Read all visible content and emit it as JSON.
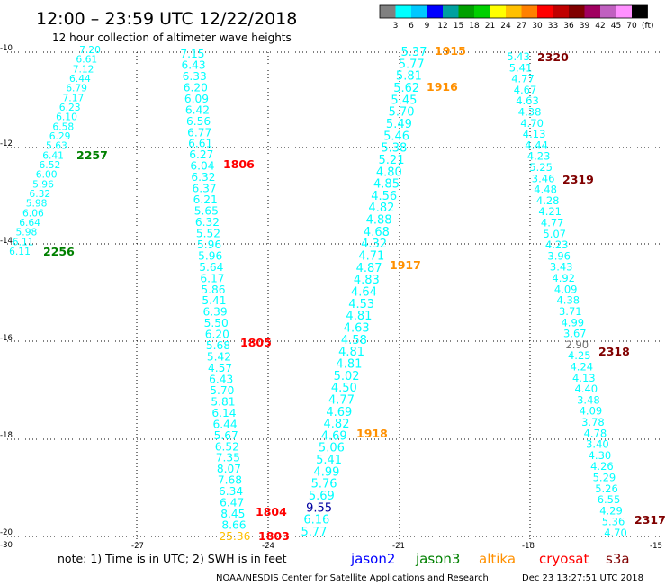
{
  "header": {
    "title": "12:00 – 23:59 UTC 12/22/2018",
    "subtitle": "12 hour collection of altimeter wave heights",
    "unit": "(ft)"
  },
  "legend_scale": {
    "colors": [
      "#808080",
      "#00ffff",
      "#00c8ff",
      "#0000ff",
      "#00a0a0",
      "#00a000",
      "#00d000",
      "#ffff00",
      "#ffc000",
      "#ff8000",
      "#ff0000",
      "#c00000",
      "#800000",
      "#a00060",
      "#c060c0",
      "#ff90ff",
      "#000000"
    ],
    "ticks": [
      "3",
      "6",
      "9",
      "12",
      "15",
      "18",
      "21",
      "24",
      "27",
      "30",
      "33",
      "36",
      "39",
      "42",
      "45",
      "70"
    ]
  },
  "map": {
    "lat_ticks": [
      "-10",
      "-12",
      "-14",
      "-16",
      "-18",
      "-20",
      "-30"
    ],
    "lon_ticks": [
      "-27",
      "-24",
      "-21",
      "-18",
      "-15"
    ],
    "tracks": [
      {
        "values": [
          {
            "t": "7.20",
            "c": "#00ffff"
          },
          {
            "t": "6.61",
            "c": "#00ffff"
          },
          {
            "t": "7.12",
            "c": "#00ffff"
          },
          {
            "t": "6.44",
            "c": "#00ffff"
          },
          {
            "t": "6.79",
            "c": "#00ffff"
          },
          {
            "t": "7.17",
            "c": "#00ffff"
          },
          {
            "t": "6.23",
            "c": "#00ffff"
          },
          {
            "t": "6.10",
            "c": "#00ffff"
          },
          {
            "t": "6.58",
            "c": "#00ffff"
          },
          {
            "t": "6.29",
            "c": "#00ffff"
          },
          {
            "t": "5.63",
            "c": "#00ffff"
          },
          {
            "t": "6.41",
            "c": "#00ffff"
          },
          {
            "t": "6.52",
            "c": "#00ffff"
          },
          {
            "t": "6.00",
            "c": "#00ffff"
          },
          {
            "t": "5.96",
            "c": "#00ffff"
          },
          {
            "t": "6.32",
            "c": "#00ffff"
          },
          {
            "t": "5.98",
            "c": "#00ffff"
          },
          {
            "t": "6.06",
            "c": "#00ffff"
          },
          {
            "t": "6.64",
            "c": "#00ffff"
          },
          {
            "t": "5.98",
            "c": "#00ffff"
          },
          {
            "t": "6.11",
            "c": "#00ffff"
          },
          {
            "t": "6.11",
            "c": "#00ffff"
          }
        ],
        "times": [
          {
            "t": "2257",
            "c": "#008000"
          },
          {
            "t": "2256",
            "c": "#008000"
          }
        ]
      },
      {
        "values": [
          {
            "t": "7.15",
            "c": "#00ffff"
          },
          {
            "t": "6.43",
            "c": "#00ffff"
          },
          {
            "t": "6.33",
            "c": "#00ffff"
          },
          {
            "t": "6.20",
            "c": "#00ffff"
          },
          {
            "t": "6.09",
            "c": "#00ffff"
          },
          {
            "t": "6.42",
            "c": "#00ffff"
          },
          {
            "t": "6.56",
            "c": "#00ffff"
          },
          {
            "t": "6.77",
            "c": "#00ffff"
          },
          {
            "t": "6.61",
            "c": "#00ffff"
          },
          {
            "t": "6.27",
            "c": "#00ffff"
          },
          {
            "t": "6.04",
            "c": "#00ffff"
          },
          {
            "t": "6.32",
            "c": "#00ffff"
          },
          {
            "t": "6.37",
            "c": "#00ffff"
          },
          {
            "t": "6.21",
            "c": "#00ffff"
          },
          {
            "t": "5.65",
            "c": "#00ffff"
          },
          {
            "t": "6.32",
            "c": "#00ffff"
          },
          {
            "t": "5.52",
            "c": "#00ffff"
          },
          {
            "t": "5.96",
            "c": "#00ffff"
          },
          {
            "t": "5.96",
            "c": "#00ffff"
          },
          {
            "t": "5.64",
            "c": "#00ffff"
          },
          {
            "t": "6.17",
            "c": "#00ffff"
          },
          {
            "t": "5.86",
            "c": "#00ffff"
          },
          {
            "t": "5.41",
            "c": "#00ffff"
          },
          {
            "t": "6.39",
            "c": "#00ffff"
          },
          {
            "t": "5.50",
            "c": "#00ffff"
          },
          {
            "t": "6.20",
            "c": "#00ffff"
          },
          {
            "t": "5.68",
            "c": "#00ffff"
          },
          {
            "t": "5.42",
            "c": "#00ffff"
          },
          {
            "t": "4.57",
            "c": "#00ffff"
          },
          {
            "t": "6.43",
            "c": "#00ffff"
          },
          {
            "t": "5.70",
            "c": "#00ffff"
          },
          {
            "t": "5.81",
            "c": "#00ffff"
          },
          {
            "t": "6.14",
            "c": "#00ffff"
          },
          {
            "t": "6.44",
            "c": "#00ffff"
          },
          {
            "t": "5.67",
            "c": "#00ffff"
          },
          {
            "t": "6.52",
            "c": "#00ffff"
          },
          {
            "t": "7.35",
            "c": "#00ffff"
          },
          {
            "t": "8.07",
            "c": "#00ffff"
          },
          {
            "t": "7.68",
            "c": "#00ffff"
          },
          {
            "t": "6.34",
            "c": "#00ffff"
          },
          {
            "t": "6.47",
            "c": "#00ffff"
          },
          {
            "t": "8.45",
            "c": "#00ffff"
          },
          {
            "t": "8.66",
            "c": "#00ffff"
          },
          {
            "t": "25.36",
            "c": "#ffc000"
          }
        ],
        "times": [
          {
            "t": "1806",
            "c": "#ff0000"
          },
          {
            "t": "1805",
            "c": "#ff0000"
          },
          {
            "t": "1804",
            "c": "#ff0000"
          },
          {
            "t": "1803",
            "c": "#ff0000"
          }
        ]
      },
      {
        "values": [
          {
            "t": "5.37",
            "c": "#00ffff"
          },
          {
            "t": "5.77",
            "c": "#00ffff"
          },
          {
            "t": "5.81",
            "c": "#00ffff"
          },
          {
            "t": "5.62",
            "c": "#00ffff"
          },
          {
            "t": "5.45",
            "c": "#00ffff"
          },
          {
            "t": "5.70",
            "c": "#00ffff"
          },
          {
            "t": "5.49",
            "c": "#00ffff"
          },
          {
            "t": "5.46",
            "c": "#00ffff"
          },
          {
            "t": "5.38",
            "c": "#00ffff"
          },
          {
            "t": "5.21",
            "c": "#00ffff"
          },
          {
            "t": "4.80",
            "c": "#00ffff"
          },
          {
            "t": "4.85",
            "c": "#00ffff"
          },
          {
            "t": "4.56",
            "c": "#00ffff"
          },
          {
            "t": "4.82",
            "c": "#00ffff"
          },
          {
            "t": "4.88",
            "c": "#00ffff"
          },
          {
            "t": "4.68",
            "c": "#00ffff"
          },
          {
            "t": "4.32",
            "c": "#00ffff"
          },
          {
            "t": "4.71",
            "c": "#00ffff"
          },
          {
            "t": "4.87",
            "c": "#00ffff"
          },
          {
            "t": "4.83",
            "c": "#00ffff"
          },
          {
            "t": "4.64",
            "c": "#00ffff"
          },
          {
            "t": "4.53",
            "c": "#00ffff"
          },
          {
            "t": "4.81",
            "c": "#00ffff"
          },
          {
            "t": "4.63",
            "c": "#00ffff"
          },
          {
            "t": "4.58",
            "c": "#00ffff"
          },
          {
            "t": "4.81",
            "c": "#00ffff"
          },
          {
            "t": "4.81",
            "c": "#00ffff"
          },
          {
            "t": "5.02",
            "c": "#00ffff"
          },
          {
            "t": "4.50",
            "c": "#00ffff"
          },
          {
            "t": "4.77",
            "c": "#00ffff"
          },
          {
            "t": "4.69",
            "c": "#00ffff"
          },
          {
            "t": "4.82",
            "c": "#00ffff"
          },
          {
            "t": "4.69",
            "c": "#00ffff"
          },
          {
            "t": "5.06",
            "c": "#00ffff"
          },
          {
            "t": "5.41",
            "c": "#00ffff"
          },
          {
            "t": "4.99",
            "c": "#00ffff"
          },
          {
            "t": "5.76",
            "c": "#00ffff"
          },
          {
            "t": "5.69",
            "c": "#00ffff"
          },
          {
            "t": "9.55",
            "c": "#0000a0"
          },
          {
            "t": "6.16",
            "c": "#00ffff"
          },
          {
            "t": "5.77",
            "c": "#00ffff"
          }
        ],
        "times": [
          {
            "t": "1915",
            "c": "#ff9000"
          },
          {
            "t": "1916",
            "c": "#ff9000"
          },
          {
            "t": "1917",
            "c": "#ff9000"
          },
          {
            "t": "1918",
            "c": "#ff9000"
          }
        ]
      },
      {
        "values": [
          {
            "t": "5.43",
            "c": "#00ffff"
          },
          {
            "t": "5.41",
            "c": "#00ffff"
          },
          {
            "t": "4.77",
            "c": "#00ffff"
          },
          {
            "t": "4.67",
            "c": "#00ffff"
          },
          {
            "t": "4.63",
            "c": "#00ffff"
          },
          {
            "t": "4.38",
            "c": "#00ffff"
          },
          {
            "t": "4.70",
            "c": "#00ffff"
          },
          {
            "t": "4.13",
            "c": "#00ffff"
          },
          {
            "t": "4.44",
            "c": "#00ffff"
          },
          {
            "t": "4.23",
            "c": "#00ffff"
          },
          {
            "t": "5.25",
            "c": "#00ffff"
          },
          {
            "t": "3.46",
            "c": "#00ffff"
          },
          {
            "t": "4.48",
            "c": "#00ffff"
          },
          {
            "t": "4.28",
            "c": "#00ffff"
          },
          {
            "t": "4.21",
            "c": "#00ffff"
          },
          {
            "t": "4.77",
            "c": "#00ffff"
          },
          {
            "t": "5.07",
            "c": "#00ffff"
          },
          {
            "t": "4.23",
            "c": "#00ffff"
          },
          {
            "t": "3.96",
            "c": "#00ffff"
          },
          {
            "t": "3.43",
            "c": "#00ffff"
          },
          {
            "t": "4.92",
            "c": "#00ffff"
          },
          {
            "t": "4.09",
            "c": "#00ffff"
          },
          {
            "t": "4.38",
            "c": "#00ffff"
          },
          {
            "t": "3.71",
            "c": "#00ffff"
          },
          {
            "t": "4.99",
            "c": "#00ffff"
          },
          {
            "t": "3.67",
            "c": "#00ffff"
          },
          {
            "t": "2.90",
            "c": "#707070"
          },
          {
            "t": "4.25",
            "c": "#00ffff"
          },
          {
            "t": "4.24",
            "c": "#00ffff"
          },
          {
            "t": "4.13",
            "c": "#00ffff"
          },
          {
            "t": "4.40",
            "c": "#00ffff"
          },
          {
            "t": "3.48",
            "c": "#00ffff"
          },
          {
            "t": "4.09",
            "c": "#00ffff"
          },
          {
            "t": "3.78",
            "c": "#00ffff"
          },
          {
            "t": "4.78",
            "c": "#00ffff"
          },
          {
            "t": "3.40",
            "c": "#00ffff"
          },
          {
            "t": "4.30",
            "c": "#00ffff"
          },
          {
            "t": "4.26",
            "c": "#00ffff"
          },
          {
            "t": "5.29",
            "c": "#00ffff"
          },
          {
            "t": "5.26",
            "c": "#00ffff"
          },
          {
            "t": "6.55",
            "c": "#00ffff"
          },
          {
            "t": "4.29",
            "c": "#00ffff"
          },
          {
            "t": "5.36",
            "c": "#00ffff"
          },
          {
            "t": "4.70",
            "c": "#00ffff"
          }
        ],
        "times": [
          {
            "t": "2320",
            "c": "#800000"
          },
          {
            "t": "2319",
            "c": "#800000"
          },
          {
            "t": "2318",
            "c": "#800000"
          },
          {
            "t": "2317",
            "c": "#800000"
          }
        ]
      }
    ]
  },
  "footer": {
    "note": "note:  1) Time is in UTC;  2) SWH is in feet",
    "satellites": [
      {
        "name": "jason2",
        "color": "#0000ff"
      },
      {
        "name": "jason3",
        "color": "#008000"
      },
      {
        "name": "altika",
        "color": "#ff9000"
      },
      {
        "name": "cryosat",
        "color": "#ff0000"
      },
      {
        "name": "s3a",
        "color": "#800000"
      }
    ],
    "credit": "NOAA/NESDIS Center for Satellite Applications and Research",
    "generated": "Dec 23 13:27:51 UTC 2018"
  }
}
